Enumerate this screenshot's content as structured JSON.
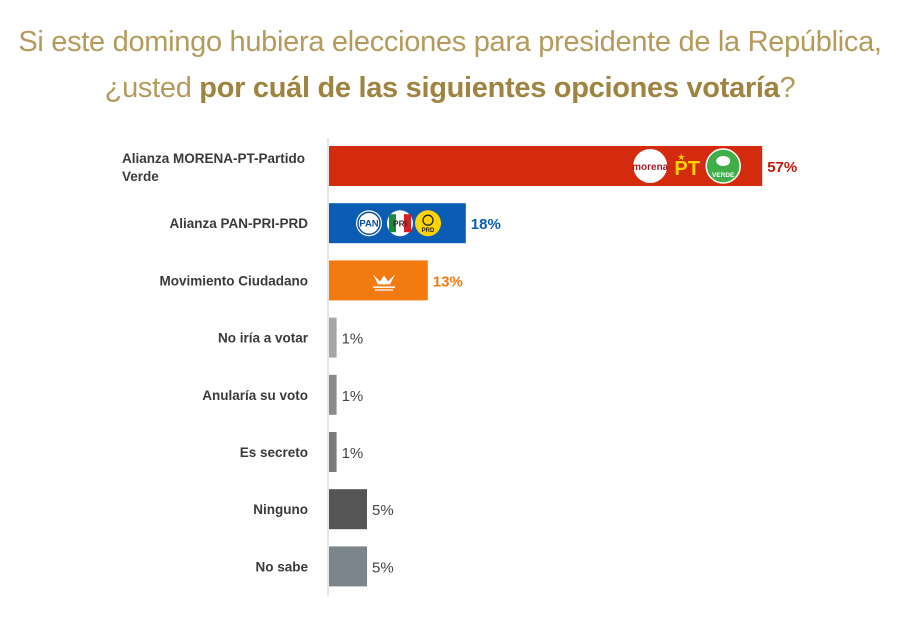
{
  "header": {
    "line1": "Si este domingo hubiera elecciones para presidente de la República,",
    "line2_pre": "¿usted ",
    "line2_bold": "por cuál de las siguientes opciones votaría",
    "line2_post": "?"
  },
  "chart_data": {
    "type": "bar",
    "orientation": "horizontal",
    "title": "Si este domingo hubiera elecciones para presidente de la República, ¿usted por cuál de las siguientes opciones votaría?",
    "categories": [
      "Alianza MORENA-PT-Partido Verde",
      "Alianza PAN-PRI-PRD",
      "Movimiento Ciudadano",
      "No iría a votar",
      "Anularía su voto",
      "Es secreto",
      "Ninguno",
      "No sabe"
    ],
    "values": [
      57,
      18,
      13,
      1,
      1,
      1,
      5,
      5
    ],
    "value_labels": [
      "57%",
      "18%",
      "13%",
      "1%",
      "1%",
      "1%",
      "5%",
      "5%"
    ],
    "bar_colors": [
      "#d42a0e",
      "#0b5db3",
      "#f27a0f",
      "#a6a6a6",
      "#8a8a8a",
      "#7a7a7a",
      "#555555",
      "#7b858b"
    ],
    "label_colors": [
      "#c0180c",
      "#0b5db3",
      "#f27a0f",
      "#444444",
      "#444444",
      "#444444",
      "#444444",
      "#444444"
    ],
    "label_bold": [
      true,
      true,
      true,
      false,
      false,
      false,
      false,
      false
    ],
    "xlim": [
      0,
      60
    ],
    "grid": false,
    "legend": "none",
    "bar_logos": [
      [
        "morena",
        "PT",
        "VERDE"
      ],
      [
        "PAN",
        "PRI",
        "PRD"
      ],
      [
        "MC"
      ]
    ]
  },
  "colors": {
    "title": "#b59a5c",
    "title_bold": "#9e8440",
    "axis": "#cccccc"
  }
}
